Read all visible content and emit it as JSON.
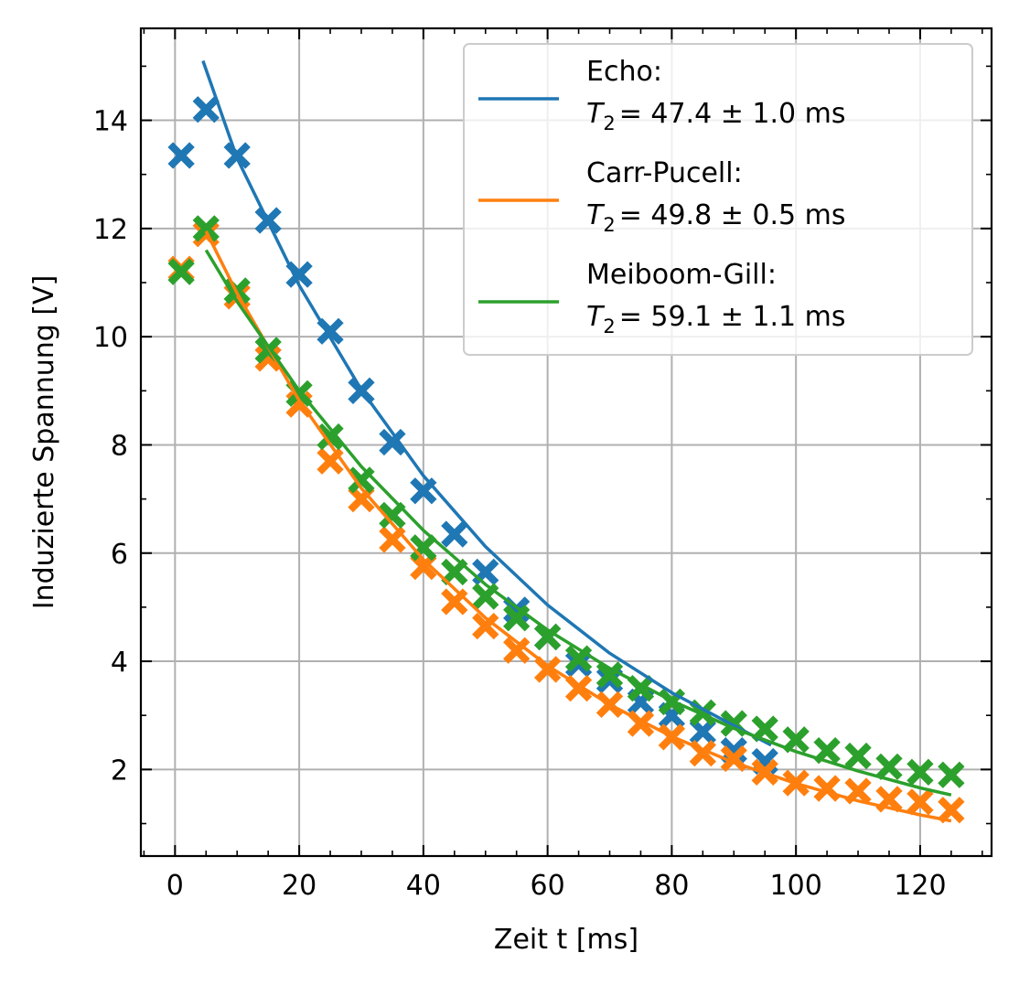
{
  "chart_data": {
    "type": "scatter",
    "xlabel": "Zeit t [ms]",
    "ylabel": "Induzierte Spannung [V]",
    "xlim": [
      -5.5,
      131.5
    ],
    "ylim": [
      0.4,
      15.7
    ],
    "xticks": [
      0,
      20,
      40,
      60,
      80,
      100,
      120
    ],
    "yticks": [
      2,
      4,
      6,
      8,
      10,
      12,
      14
    ],
    "xtick_labels": [
      "0",
      "20",
      "40",
      "60",
      "80",
      "100",
      "120"
    ],
    "ytick_labels": [
      "2",
      "4",
      "6",
      "8",
      "10",
      "12",
      "14"
    ],
    "grid": true,
    "legend_position": "top-right",
    "series": [
      {
        "key": "echo",
        "legend_name": "Echo:",
        "legend_fit_prefix": "T",
        "legend_fit_sub": "2",
        "legend_fit_value": "=  47.4 ± 1.0 ms",
        "color": "#1f77b4",
        "marker": "X",
        "points": [
          [
            1,
            13.35
          ],
          [
            5,
            14.2
          ],
          [
            10,
            13.35
          ],
          [
            15,
            12.15
          ],
          [
            20,
            11.15
          ],
          [
            25,
            10.1
          ],
          [
            30,
            9.0
          ],
          [
            35,
            8.05
          ],
          [
            40,
            7.15
          ],
          [
            45,
            6.35
          ],
          [
            50,
            5.65
          ],
          [
            55,
            4.95
          ],
          [
            60,
            4.45
          ],
          [
            65,
            3.95
          ],
          [
            70,
            3.65
          ],
          [
            75,
            3.25
          ],
          [
            80,
            3.0
          ],
          [
            85,
            2.7
          ],
          [
            90,
            2.35
          ],
          [
            95,
            2.15
          ]
        ],
        "fit_curve": [
          [
            4.5,
            15.1
          ],
          [
            10,
            13.3
          ],
          [
            20,
            10.95
          ],
          [
            30,
            9.02
          ],
          [
            40,
            7.43
          ],
          [
            50,
            6.12
          ],
          [
            60,
            5.04
          ],
          [
            70,
            4.15
          ],
          [
            80,
            3.42
          ],
          [
            90,
            2.81
          ],
          [
            96,
            2.45
          ]
        ]
      },
      {
        "key": "carr_purcell",
        "legend_name": "Carr-Pucell:",
        "legend_fit_prefix": "T",
        "legend_fit_sub": "2",
        "legend_fit_value": "=  49.8 ± 0.5 ms",
        "color": "#ff7f0e",
        "marker": "X",
        "points": [
          [
            1,
            11.25
          ],
          [
            5,
            11.9
          ],
          [
            10,
            10.75
          ],
          [
            15,
            9.6
          ],
          [
            20,
            8.75
          ],
          [
            25,
            7.7
          ],
          [
            30,
            7.0
          ],
          [
            35,
            6.25
          ],
          [
            40,
            5.75
          ],
          [
            45,
            5.1
          ],
          [
            50,
            4.65
          ],
          [
            55,
            4.2
          ],
          [
            60,
            3.85
          ],
          [
            65,
            3.5
          ],
          [
            70,
            3.2
          ],
          [
            75,
            2.85
          ],
          [
            80,
            2.6
          ],
          [
            85,
            2.3
          ],
          [
            90,
            2.2
          ],
          [
            95,
            1.95
          ],
          [
            100,
            1.75
          ],
          [
            105,
            1.65
          ],
          [
            110,
            1.6
          ],
          [
            115,
            1.45
          ],
          [
            120,
            1.4
          ],
          [
            125,
            1.25
          ]
        ],
        "fit_curve": [
          [
            5,
            11.95
          ],
          [
            10,
            10.8
          ],
          [
            20,
            8.82
          ],
          [
            30,
            7.2
          ],
          [
            40,
            5.88
          ],
          [
            50,
            4.8
          ],
          [
            60,
            3.92
          ],
          [
            70,
            3.2
          ],
          [
            80,
            2.61
          ],
          [
            90,
            2.13
          ],
          [
            100,
            1.74
          ],
          [
            110,
            1.42
          ],
          [
            120,
            1.16
          ],
          [
            125,
            1.05
          ]
        ]
      },
      {
        "key": "meiboom_gill",
        "legend_name": "Meiboom-Gill:",
        "legend_fit_prefix": "T",
        "legend_fit_sub": "2",
        "legend_fit_value": "=  59.1 ± 1.1 ms",
        "color": "#2ca02c",
        "marker": "X",
        "points": [
          [
            1,
            11.2
          ],
          [
            5,
            12.0
          ],
          [
            10,
            10.85
          ],
          [
            15,
            9.75
          ],
          [
            20,
            8.95
          ],
          [
            25,
            8.15
          ],
          [
            30,
            7.35
          ],
          [
            35,
            6.7
          ],
          [
            40,
            6.1
          ],
          [
            45,
            5.65
          ],
          [
            50,
            5.2
          ],
          [
            55,
            4.8
          ],
          [
            60,
            4.45
          ],
          [
            65,
            4.05
          ],
          [
            70,
            3.75
          ],
          [
            75,
            3.5
          ],
          [
            80,
            3.25
          ],
          [
            85,
            3.05
          ],
          [
            90,
            2.85
          ],
          [
            95,
            2.75
          ],
          [
            100,
            2.55
          ],
          [
            105,
            2.35
          ],
          [
            110,
            2.25
          ],
          [
            115,
            2.05
          ],
          [
            120,
            1.95
          ],
          [
            125,
            1.9
          ]
        ],
        "fit_curve": [
          [
            5,
            11.6
          ],
          [
            10,
            10.65
          ],
          [
            20,
            9.0
          ],
          [
            30,
            7.6
          ],
          [
            40,
            6.42
          ],
          [
            50,
            5.42
          ],
          [
            60,
            4.58
          ],
          [
            70,
            3.87
          ],
          [
            80,
            3.27
          ],
          [
            90,
            2.76
          ],
          [
            100,
            2.33
          ],
          [
            110,
            1.97
          ],
          [
            120,
            1.66
          ],
          [
            125,
            1.53
          ]
        ]
      }
    ]
  }
}
